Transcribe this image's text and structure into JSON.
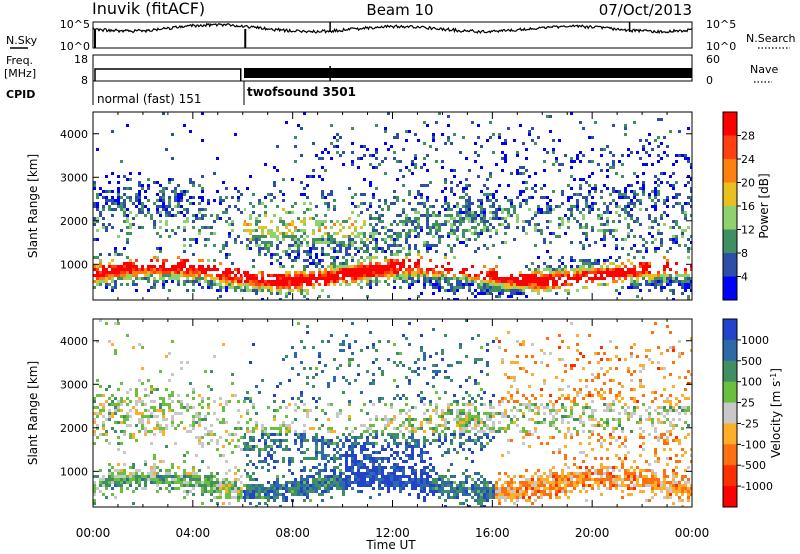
{
  "header": {
    "station": "Inuvik (fitACF)",
    "beam": "Beam 10",
    "date": "07/Oct/2013"
  },
  "sky_panel": {
    "left_label": "N.Sky",
    "right_label": "N.Search",
    "left_ticks": [
      "10^5",
      "10^0"
    ],
    "right_ticks": [
      "10^5",
      "10^0"
    ]
  },
  "freq_panel": {
    "left_label_1": "Freq.",
    "left_label_2": "[MHz]",
    "right_label": "Nave",
    "left_ticks": [
      "18",
      "8"
    ],
    "right_ticks": [
      "60",
      "0"
    ]
  },
  "cpid_panel": {
    "label": "CPID",
    "modes": [
      {
        "name": "normal (fast) 151",
        "start_hour": 0,
        "end_hour": 6
      },
      {
        "name": "twofsound 3501",
        "start_hour": 6,
        "end_hour": 24
      }
    ]
  },
  "chart_data": [
    {
      "type": "heatmap",
      "title": "",
      "xlabel": "",
      "ylabel": "Slant Range [km]",
      "x_range_hours": [
        0,
        24
      ],
      "ylim": [
        180,
        4500
      ],
      "yticks": [
        "1000",
        "2000",
        "3000",
        "4000"
      ],
      "colorbar": {
        "label": "Power [dB]",
        "ticks": [
          "4",
          "8",
          "12",
          "16",
          "20",
          "24",
          "28"
        ],
        "colors": [
          "#0000ff",
          "#2e4fa8",
          "#3f8f63",
          "#8fd16f",
          "#e8c020",
          "#ff7f0f",
          "#ff4010",
          "#ff0000"
        ]
      }
    },
    {
      "type": "heatmap",
      "title": "",
      "xlabel": "Time UT",
      "ylabel": "Slant Range [km]",
      "x_range_hours": [
        0,
        24
      ],
      "ylim": [
        180,
        4500
      ],
      "xticks": [
        "00:00",
        "04:00",
        "08:00",
        "12:00",
        "16:00",
        "20:00",
        "00:00"
      ],
      "yticks": [
        "1000",
        "2000",
        "3000",
        "4000"
      ],
      "colorbar": {
        "label_main": "Velocity",
        "label_unit": "[m s",
        "label_sup": "-1",
        "label_close": "]",
        "ticks": [
          "1000",
          "500",
          "100",
          "25",
          "-25",
          "-100",
          "-500",
          "-1000"
        ],
        "colors": [
          "#2244cc",
          "#2f6aa8",
          "#3f8f63",
          "#6bbf3f",
          "#c8c8c8",
          "#ffae2a",
          "#ff7010",
          "#ff3000",
          "#ff0000"
        ]
      }
    }
  ]
}
